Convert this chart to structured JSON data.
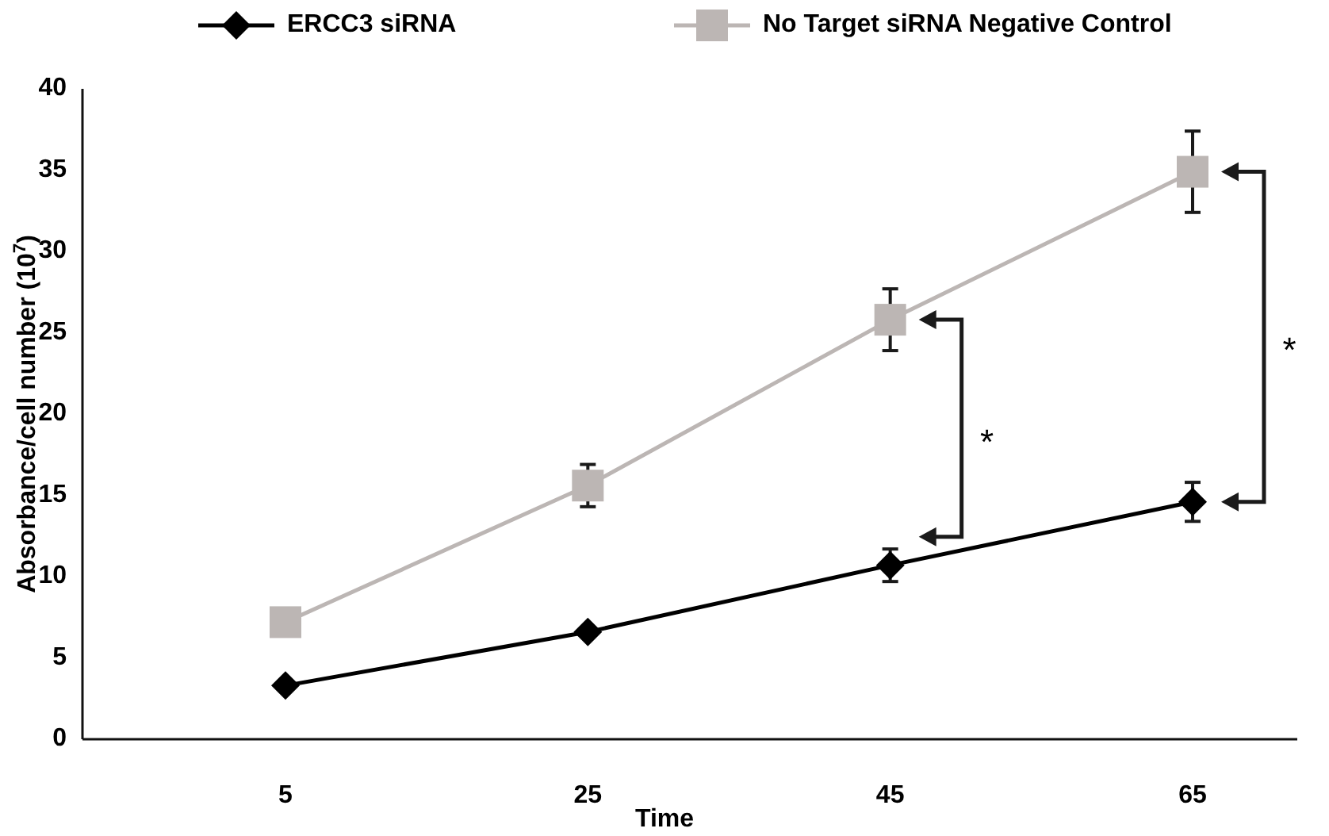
{
  "chart_data": {
    "type": "line",
    "xlabel": "Time",
    "ylabel": "Absorbance/cell number (10$^{7}$)",
    "categories": [
      "5",
      "25",
      "45",
      "65"
    ],
    "ylim": [
      0,
      40
    ],
    "yticks": [
      0,
      5,
      10,
      15,
      20,
      25,
      30,
      35,
      40
    ],
    "legend": "top",
    "grid": false,
    "line_style": "solid",
    "series": [
      {
        "name": "ERCC3 siRNA",
        "color": "#000000",
        "marker": "diamond",
        "values": [
          3.3,
          6.6,
          10.7,
          14.6
        ],
        "errors": [
          null,
          null,
          1.0,
          1.2
        ]
      },
      {
        "name": "No Target siRNA Negative Control",
        "color": "#bcb6b4",
        "marker": "square",
        "values": [
          7.2,
          15.6,
          25.8,
          34.9
        ],
        "errors": [
          null,
          1.3,
          1.9,
          2.5
        ]
      }
    ],
    "annotations": [
      "*",
      "*"
    ]
  }
}
